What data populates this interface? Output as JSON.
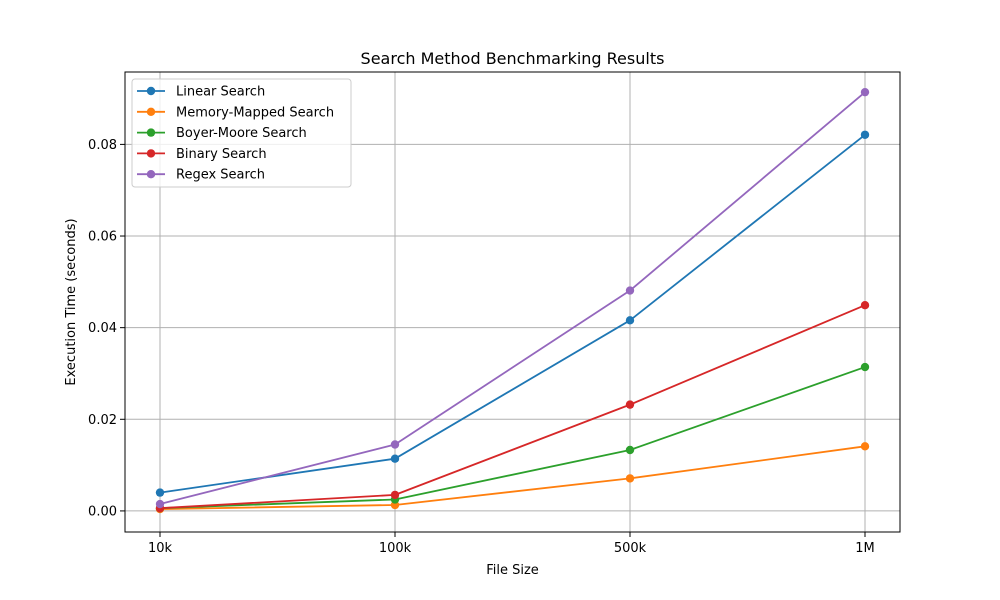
{
  "chart_data": {
    "type": "line",
    "title": "Search Method Benchmarking Results",
    "xlabel": "File Size",
    "ylabel": "Execution Time (seconds)",
    "categories": [
      "10k",
      "100k",
      "500k",
      "1M"
    ],
    "ylim": [
      -0.0046,
      0.0958
    ],
    "yticks": [
      0.0,
      0.02,
      0.04,
      0.06,
      0.08
    ],
    "ytick_labels": [
      "0.00",
      "0.02",
      "0.04",
      "0.06",
      "0.08"
    ],
    "grid": true,
    "legend_position": "top-left",
    "series": [
      {
        "name": "Linear Search",
        "color": "#1f77b4",
        "values": [
          0.004,
          0.0114,
          0.0416,
          0.0821
        ]
      },
      {
        "name": "Memory-Mapped Search",
        "color": "#ff7f0e",
        "values": [
          0.0004,
          0.0013,
          0.0071,
          0.0141
        ]
      },
      {
        "name": "Boyer-Moore Search",
        "color": "#2ca02c",
        "values": [
          0.0006,
          0.0025,
          0.0133,
          0.0314
        ]
      },
      {
        "name": "Binary Search",
        "color": "#d62728",
        "values": [
          0.0006,
          0.0035,
          0.0232,
          0.0449
        ]
      },
      {
        "name": "Regex Search",
        "color": "#9467bd",
        "values": [
          0.0015,
          0.0145,
          0.0481,
          0.0914
        ]
      }
    ]
  }
}
